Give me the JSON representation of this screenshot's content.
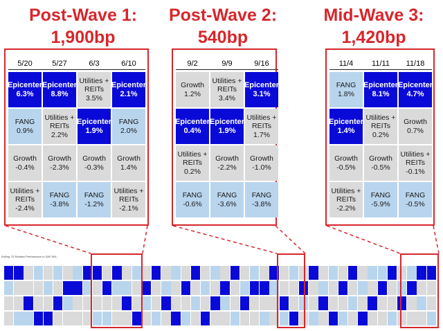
{
  "colors": {
    "accent": "#d7262b",
    "epicenter": "#0a0ad8",
    "fang": "#b9d5ee",
    "grey": "#dadada"
  },
  "panels": [
    {
      "title_line1": "Post-Wave 1:",
      "title_line2": "1,900bp",
      "dates": [
        "5/20",
        "5/27",
        "6/3",
        "6/10"
      ],
      "rows": [
        [
          {
            "t": "epi",
            "name": "Epicenter",
            "value": "6.3%"
          },
          {
            "t": "epi",
            "name": "Epicenter",
            "value": "8.8%"
          },
          {
            "t": "grey",
            "name": "Utilities + REITs",
            "value": "3.5%"
          },
          {
            "t": "epi",
            "name": "Epicenter",
            "value": "2.1%"
          }
        ],
        [
          {
            "t": "fang",
            "name": "FANG",
            "value": "0.9%"
          },
          {
            "t": "grey",
            "name": "Utilities + REITs",
            "value": "2.2%"
          },
          {
            "t": "epi",
            "name": "Epicenter",
            "value": "1.9%"
          },
          {
            "t": "fang",
            "name": "FANG",
            "value": "2.0%"
          }
        ],
        [
          {
            "t": "grey",
            "name": "Growth",
            "value": "-0.4%"
          },
          {
            "t": "grey",
            "name": "Growth",
            "value": "-2.3%"
          },
          {
            "t": "grey",
            "name": "Growth",
            "value": "-0.3%"
          },
          {
            "t": "grey",
            "name": "Growth",
            "value": "1.4%"
          }
        ],
        [
          {
            "t": "grey",
            "name": "Utilities + REITs",
            "value": "-2.4%"
          },
          {
            "t": "fang",
            "name": "FANG",
            "value": "-3.8%"
          },
          {
            "t": "fang",
            "name": "FANG",
            "value": "-1.2%"
          },
          {
            "t": "grey",
            "name": "Utilities + REITs",
            "value": "-2.1%"
          }
        ]
      ]
    },
    {
      "title_line1": "Post-Wave 2:",
      "title_line2": "540bp",
      "dates": [
        "9/2",
        "9/9",
        "9/16"
      ],
      "rows": [
        [
          {
            "t": "grey",
            "name": "Growth",
            "value": "1.2%"
          },
          {
            "t": "grey",
            "name": "Utilities + REITs",
            "value": "3.4%"
          },
          {
            "t": "epi",
            "name": "Epicenter",
            "value": "3.1%"
          }
        ],
        [
          {
            "t": "epi",
            "name": "Epicenter",
            "value": "0.4%"
          },
          {
            "t": "epi",
            "name": "Epicenter",
            "value": "1.9%"
          },
          {
            "t": "grey",
            "name": "Utilities + REITs",
            "value": "1.7%"
          }
        ],
        [
          {
            "t": "grey",
            "name": "Utilities + REITs",
            "value": "0.2%"
          },
          {
            "t": "grey",
            "name": "Growth",
            "value": "-2.2%"
          },
          {
            "t": "grey",
            "name": "Growth",
            "value": "-1.0%"
          }
        ],
        [
          {
            "t": "fang",
            "name": "FANG",
            "value": "-0.6%"
          },
          {
            "t": "fang",
            "name": "FANG",
            "value": "-3.6%"
          },
          {
            "t": "fang",
            "name": "FANG",
            "value": "-3.8%"
          }
        ]
      ]
    },
    {
      "title_line1": "Mid-Wave 3:",
      "title_line2": "1,420bp",
      "dates": [
        "11/4",
        "11/11",
        "11/18"
      ],
      "rows": [
        [
          {
            "t": "fang",
            "name": "FANG",
            "value": "1.8%"
          },
          {
            "t": "epi",
            "name": "Epicenter",
            "value": "8.1%"
          },
          {
            "t": "epi",
            "name": "Epicenter",
            "value": "4.7%"
          }
        ],
        [
          {
            "t": "epi",
            "name": "Epicenter",
            "value": "1.4%"
          },
          {
            "t": "grey",
            "name": "Utilities + REITs",
            "value": "0.2%"
          },
          {
            "t": "grey",
            "name": "Growth",
            "value": "0.7%"
          }
        ],
        [
          {
            "t": "grey",
            "name": "Growth",
            "value": "-0.5%"
          },
          {
            "t": "grey",
            "name": "Growth",
            "value": "-0.5%"
          },
          {
            "t": "grey",
            "name": "Utilities + REITs",
            "value": "-0.1%"
          }
        ],
        [
          {
            "t": "grey",
            "name": "Utilities + REITs",
            "value": "-2.2%"
          },
          {
            "t": "fang",
            "name": "FANG",
            "value": "-5.9%"
          },
          {
            "t": "fang",
            "name": "FANG",
            "value": "-0.5%"
          }
        ]
      ]
    }
  ],
  "strip": {
    "caption": "Rolling 7D Relative Performance to S&P 500...",
    "columns": [
      [
        "epi",
        "fang",
        "grey",
        "grey"
      ],
      [
        "epi",
        "grey",
        "grey",
        "fang"
      ],
      [
        "grey",
        "grey",
        "epi",
        "fang"
      ],
      [
        "fang",
        "grey",
        "grey",
        "epi"
      ],
      [
        "grey",
        "fang",
        "grey",
        "epi"
      ],
      [
        "fang",
        "grey",
        "epi",
        "grey"
      ],
      [
        "grey",
        "epi",
        "fang",
        "grey"
      ],
      [
        "fang",
        "epi",
        "grey",
        "grey"
      ],
      [
        "epi",
        "fang",
        "grey",
        "grey"
      ],
      [
        "epi",
        "grey",
        "grey",
        "fang"
      ],
      [
        "grey",
        "epi",
        "grey",
        "fang"
      ],
      [
        "epi",
        "fang",
        "grey",
        "grey"
      ],
      [
        "grey",
        "fang",
        "epi",
        "grey"
      ],
      [
        "fang",
        "grey",
        "grey",
        "epi"
      ],
      [
        "grey",
        "epi",
        "fang",
        "grey"
      ],
      [
        "epi",
        "grey",
        "grey",
        "fang"
      ],
      [
        "grey",
        "fang",
        "epi",
        "grey"
      ],
      [
        "fang",
        "grey",
        "grey",
        "epi"
      ],
      [
        "grey",
        "epi",
        "grey",
        "fang"
      ],
      [
        "epi",
        "grey",
        "fang",
        "grey"
      ],
      [
        "grey",
        "fang",
        "grey",
        "epi"
      ],
      [
        "fang",
        "grey",
        "epi",
        "grey"
      ],
      [
        "grey",
        "epi",
        "fang",
        "grey"
      ],
      [
        "epi",
        "grey",
        "grey",
        "fang"
      ],
      [
        "grey",
        "fang",
        "epi",
        "grey"
      ],
      [
        "fang",
        "epi",
        "grey",
        "grey"
      ],
      [
        "grey",
        "epi",
        "grey",
        "fang"
      ],
      [
        "epi",
        "fang",
        "grey",
        "grey"
      ],
      [
        "grey",
        "grey",
        "epi",
        "fang"
      ],
      [
        "fang",
        "grey",
        "grey",
        "epi"
      ],
      [
        "grey",
        "epi",
        "fang",
        "grey"
      ],
      [
        "epi",
        "grey",
        "grey",
        "fang"
      ],
      [
        "grey",
        "fang",
        "epi",
        "grey"
      ],
      [
        "fang",
        "grey",
        "grey",
        "epi"
      ],
      [
        "grey",
        "epi",
        "grey",
        "fang"
      ],
      [
        "epi",
        "grey",
        "fang",
        "grey"
      ],
      [
        "grey",
        "fang",
        "grey",
        "epi"
      ],
      [
        "fang",
        "grey",
        "epi",
        "grey"
      ],
      [
        "fang",
        "epi",
        "grey",
        "grey"
      ],
      [
        "epi",
        "grey",
        "grey",
        "fang"
      ],
      [
        "grey",
        "fang",
        "epi",
        "grey"
      ],
      [
        "fang",
        "epi",
        "grey",
        "grey"
      ],
      [
        "epi",
        "grey",
        "fang",
        "grey"
      ],
      [
        "epi",
        "grey",
        "grey",
        "fang"
      ]
    ]
  }
}
